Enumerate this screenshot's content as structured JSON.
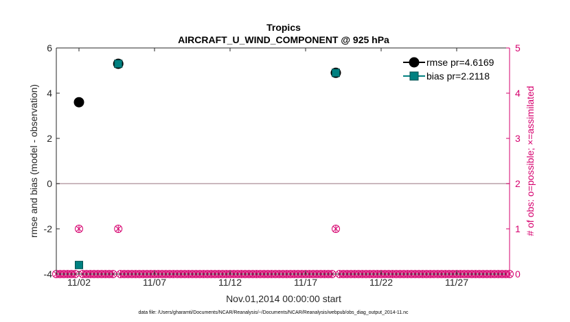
{
  "chart_data": {
    "type": "scatter",
    "title": "Tropics",
    "subtitle": "AIRCRAFT_U_WIND_COMPONENT @ 925 hPa",
    "xlabel": "Nov.01,2014 00:00:00 start",
    "ylabel_left": "rmse and bias (model - observation)",
    "ylabel_right": "# of obs: o=possible; ×=assimilated",
    "footer": "data file: /Users/gharamti/Documents/NCAR/Reanalysis/~/Documents/NCAR/Reanalysis/webpub/obs_diag_output_2014-11.nc",
    "xlim": [
      0.5,
      30.5
    ],
    "ylim_left": [
      -4,
      6
    ],
    "ylim_right": [
      0,
      5
    ],
    "x_ticks": [
      2,
      7,
      12,
      17,
      22,
      27
    ],
    "x_tick_labels": [
      "11/02",
      "11/07",
      "11/12",
      "11/17",
      "11/22",
      "11/27"
    ],
    "y_ticks_left": [
      -4,
      -2,
      0,
      2,
      4,
      6
    ],
    "y_tick_labels_left": [
      "-4",
      "-2",
      "0",
      "2",
      "4",
      "6"
    ],
    "y_ticks_right": [
      0,
      1,
      2,
      3,
      4,
      5
    ],
    "y_tick_labels_right": [
      "0",
      "1",
      "2",
      "3",
      "4",
      "5"
    ],
    "series": [
      {
        "name": "rmse",
        "legend": "rmse pr=4.6169",
        "color": "#000000",
        "marker": "circle",
        "x": [
          2,
          4.6,
          19
        ],
        "y": [
          3.6,
          5.3,
          4.9
        ]
      },
      {
        "name": "bias",
        "legend": "bias pr=2.2118",
        "color": "#008080",
        "marker": "square",
        "x": [
          2,
          4.6,
          19
        ],
        "y": [
          -3.6,
          5.3,
          4.9
        ]
      }
    ],
    "obs_count": {
      "color": "#d6006e",
      "nonzero_x": [
        2,
        4.6,
        19
      ],
      "nonzero_y": [
        1,
        1,
        1
      ],
      "zero_x_start": 0.5,
      "zero_x_end": 30.5,
      "zero_x_step": 0.25
    },
    "zero_line": true,
    "legend_position": "top-right"
  }
}
